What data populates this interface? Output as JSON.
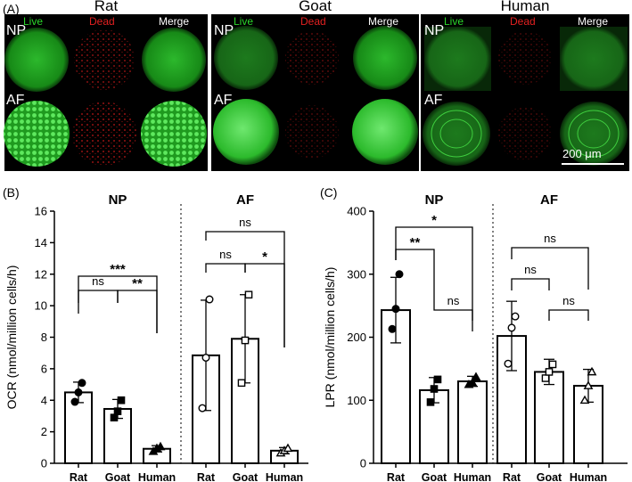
{
  "panel_a": {
    "letter": "(A)",
    "species": [
      "Rat",
      "Goat",
      "Human"
    ],
    "channels": [
      "Live",
      "Dead",
      "Merge"
    ],
    "rows": [
      "NP",
      "AF"
    ],
    "scale_bar": "200 μm"
  },
  "panel_b": {
    "letter": "(B)"
  },
  "panel_c": {
    "letter": "(C)"
  },
  "colors": {
    "live": "#2bd62b",
    "dead": "#e02020",
    "merge": "#ffffff"
  },
  "chart_data": [
    {
      "type": "bar",
      "ylabel": "OCR (nmol/million cells/h)",
      "ylim": [
        0,
        16
      ],
      "yticks": [
        0,
        2,
        4,
        6,
        8,
        10,
        12,
        14,
        16
      ],
      "groups": [
        {
          "title": "NP",
          "categories": [
            "Rat",
            "Goat",
            "Human"
          ],
          "values": [
            4.5,
            3.45,
            0.92
          ],
          "sd": [
            0.65,
            0.6,
            0.2
          ],
          "points": [
            [
              3.9,
              4.5,
              5.1
            ],
            [
              2.9,
              3.3,
              4.0
            ],
            [
              0.75,
              0.95,
              1.05
            ]
          ],
          "markers": [
            "circle-filled",
            "square-filled",
            "triangle-filled"
          ],
          "significance": [
            {
              "from": 0,
              "to": 1,
              "label": "ns"
            },
            {
              "from": 1,
              "to": 2,
              "label": "**"
            },
            {
              "from": 0,
              "to": 2,
              "label": "***"
            }
          ]
        },
        {
          "title": "AF",
          "categories": [
            "Rat",
            "Goat",
            "Human"
          ],
          "values": [
            6.85,
            7.9,
            0.8
          ],
          "sd": [
            3.5,
            2.8,
            0.2
          ],
          "points": [
            [
              3.5,
              6.7,
              10.4
            ],
            [
              5.1,
              7.8,
              10.7
            ],
            [
              0.65,
              0.8,
              0.95
            ]
          ],
          "markers": [
            "circle-open",
            "square-open",
            "triangle-open"
          ],
          "significance": [
            {
              "from": 0,
              "to": 1,
              "label": "ns"
            },
            {
              "from": 1,
              "to": 2,
              "label": "*"
            },
            {
              "from": 0,
              "to": 2,
              "label": "ns"
            }
          ]
        }
      ]
    },
    {
      "type": "bar",
      "ylabel": "LPR (nmol/million cells/h)",
      "ylim": [
        0,
        400
      ],
      "yticks": [
        0,
        100,
        200,
        300,
        400
      ],
      "groups": [
        {
          "title": "NP",
          "categories": [
            "Rat",
            "Goat",
            "Human"
          ],
          "values": [
            243,
            116,
            130
          ],
          "sd": [
            52,
            20,
            8
          ],
          "points": [
            [
              213,
              245,
              300
            ],
            [
              97,
              118,
              133
            ],
            [
              125,
              128,
              137
            ]
          ],
          "markers": [
            "circle-filled",
            "square-filled",
            "triangle-filled"
          ],
          "significance": [
            {
              "from": 0,
              "to": 1,
              "label": "**"
            },
            {
              "from": 1,
              "to": 2,
              "label": "ns"
            },
            {
              "from": 0,
              "to": 2,
              "label": "*"
            }
          ]
        },
        {
          "title": "AF",
          "categories": [
            "Rat",
            "Goat",
            "Human"
          ],
          "values": [
            202,
            145,
            123
          ],
          "sd": [
            55,
            20,
            26
          ],
          "points": [
            [
              158,
              215,
              233
            ],
            [
              135,
              145,
              157
            ],
            [
              100,
              123,
              145
            ]
          ],
          "markers": [
            "circle-open",
            "square-open",
            "triangle-open"
          ],
          "significance": [
            {
              "from": 0,
              "to": 1,
              "label": "ns"
            },
            {
              "from": 1,
              "to": 2,
              "label": "ns"
            },
            {
              "from": 0,
              "to": 2,
              "label": "ns"
            }
          ]
        }
      ]
    }
  ]
}
